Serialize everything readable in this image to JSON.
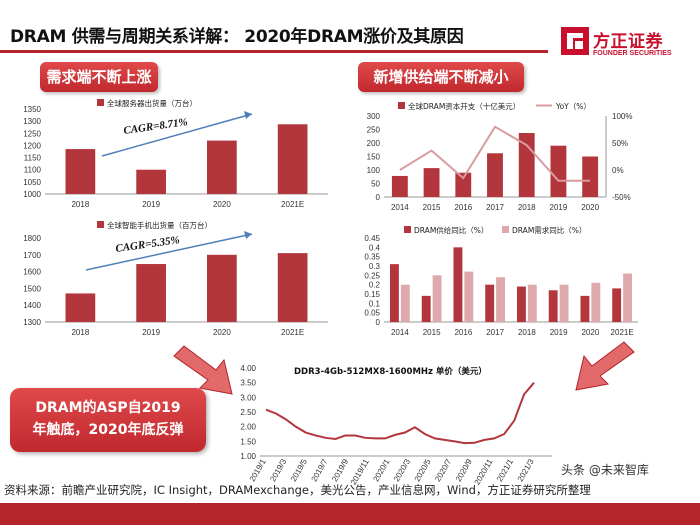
{
  "header": {
    "title": "DRAM 供需与周期关系详解： 2020年DRAM涨价及其原因",
    "logo_text": "方正证券",
    "logo_sub": "FOUNDER SECURITIES"
  },
  "labels": {
    "demand": "需求端不断上涨",
    "supply": "新增供给端不断减小",
    "callout_line1": "DRAM的ASP自2019",
    "callout_line2": "年触底，2020年底反弹"
  },
  "footer": {
    "source": "资料来源：前瞻产业研究院，IC Insight，DRAMexchange，美光公告，产业信息网，Wind，方正证券研究所整理",
    "watermark": "头条 @未来智库"
  },
  "colors": {
    "bar": "#b2363b",
    "bar_light": "#dea9ad",
    "yoy_line": "#d89ca0",
    "price_line": "#b2363b",
    "brand": "#c8102e"
  },
  "chart_data": [
    {
      "id": "servers",
      "type": "bar",
      "legend": "全球服务器出货量（万台）",
      "categories": [
        "2018",
        "2019",
        "2020",
        "2021E"
      ],
      "values": [
        1185,
        1100,
        1220,
        1287
      ],
      "ylim": [
        1000,
        1350
      ],
      "yticks": [
        1000,
        1050,
        1100,
        1150,
        1200,
        1250,
        1300,
        1350
      ],
      "annotation": "CAGR=8.71%"
    },
    {
      "id": "phones",
      "type": "bar",
      "legend": "全球智能手机出货量（百万台）",
      "categories": [
        "2018",
        "2019",
        "2020",
        "2021E"
      ],
      "values": [
        1470,
        1645,
        1700,
        1710
      ],
      "ylim": [
        1300,
        1800
      ],
      "yticks": [
        1300,
        1400,
        1500,
        1600,
        1700,
        1800
      ],
      "annotation": "CAGR=5.35%"
    },
    {
      "id": "capex",
      "type": "bar",
      "legend_bar": "全球DRAM资本开支（十亿美元）",
      "legend_line": "YoY（%）",
      "categories": [
        "2014",
        "2015",
        "2016",
        "2017",
        "2018",
        "2019",
        "2020"
      ],
      "values": [
        78,
        107,
        90,
        162,
        237,
        190,
        150
      ],
      "yoy": [
        0,
        36,
        -15,
        80,
        46,
        -20,
        -20
      ],
      "ylim": [
        0,
        300
      ],
      "yticks": [
        0,
        50,
        100,
        150,
        200,
        250,
        300
      ],
      "y2lim": [
        -50,
        100
      ],
      "y2ticks": [
        "100%",
        "50%",
        "0%",
        "-50%"
      ]
    },
    {
      "id": "supply_demand",
      "type": "bar",
      "series": [
        {
          "name": "DRAM供给同比（%）",
          "values": [
            0.31,
            0.14,
            0.4,
            0.2,
            0.19,
            0.17,
            0.14,
            0.18
          ]
        },
        {
          "name": "DRAM需求同比（%）",
          "values": [
            0.2,
            0.25,
            0.27,
            0.24,
            0.2,
            0.2,
            0.21,
            0.26
          ]
        }
      ],
      "categories": [
        "2014",
        "2015",
        "2016",
        "2017",
        "2018",
        "2019",
        "2020",
        "2021E"
      ],
      "ylim": [
        0,
        0.45
      ],
      "yticks": [
        "0",
        "0.05",
        "0.1",
        "0.15",
        "0.2",
        "0.25",
        "0.3",
        "0.35",
        "0.4",
        "0.45"
      ]
    },
    {
      "id": "asp",
      "type": "line",
      "title": "DDR3-4Gb-512MX8-1600MHz 单价（美元）",
      "ylim": [
        1.0,
        4.0
      ],
      "yticks": [
        "1.00",
        "1.50",
        "2.00",
        "2.50",
        "3.00",
        "3.50",
        "4.00"
      ],
      "xticks": [
        "2019/1",
        "2019/3",
        "2019/5",
        "2019/7",
        "2019/9",
        "2019/11",
        "2020/1",
        "2020/3",
        "2020/5",
        "2020/7",
        "2020/9",
        "2020/11",
        "2021/1",
        "2021/3"
      ],
      "x": [
        "2019/1",
        "2019/2",
        "2019/3",
        "2019/4",
        "2019/5",
        "2019/6",
        "2019/7",
        "2019/8",
        "2019/9",
        "2019/10",
        "2019/11",
        "2019/12",
        "2020/1",
        "2020/2",
        "2020/3",
        "2020/4",
        "2020/5",
        "2020/6",
        "2020/7",
        "2020/8",
        "2020/9",
        "2020/10",
        "2020/11",
        "2020/12",
        "2021/1",
        "2021/2",
        "2021/3",
        "2021/3 end"
      ],
      "values": [
        2.58,
        2.45,
        2.25,
        2.0,
        1.8,
        1.7,
        1.62,
        1.58,
        1.7,
        1.7,
        1.62,
        1.6,
        1.6,
        1.72,
        1.8,
        1.98,
        1.75,
        1.6,
        1.55,
        1.5,
        1.44,
        1.45,
        1.55,
        1.6,
        1.75,
        2.2,
        3.1,
        3.5
      ]
    }
  ]
}
